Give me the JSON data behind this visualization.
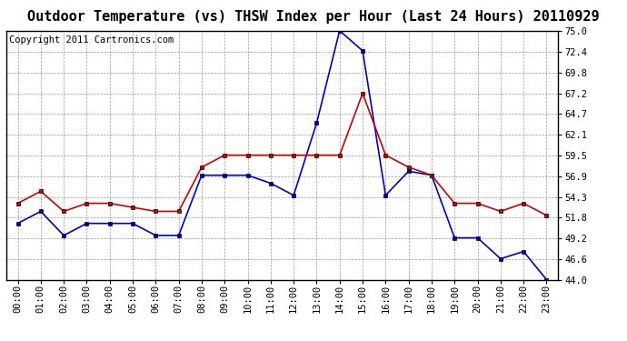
{
  "title": "Outdoor Temperature (vs) THSW Index per Hour (Last 24 Hours) 20110929",
  "copyright": "Copyright 2011 Cartronics.com",
  "hours": [
    "00:00",
    "01:00",
    "02:00",
    "03:00",
    "04:00",
    "05:00",
    "06:00",
    "07:00",
    "08:00",
    "09:00",
    "10:00",
    "11:00",
    "12:00",
    "13:00",
    "14:00",
    "15:00",
    "16:00",
    "17:00",
    "18:00",
    "19:00",
    "20:00",
    "21:00",
    "22:00",
    "23:00"
  ],
  "temp_red": [
    53.5,
    55.0,
    52.5,
    53.5,
    53.5,
    53.0,
    52.5,
    52.5,
    58.0,
    59.5,
    59.5,
    59.5,
    59.5,
    59.5,
    59.5,
    67.2,
    59.5,
    58.0,
    57.0,
    53.5,
    53.5,
    52.5,
    53.5,
    52.0
  ],
  "thsw_blue": [
    51.0,
    52.5,
    49.5,
    51.0,
    51.0,
    51.0,
    49.5,
    49.5,
    57.0,
    57.0,
    57.0,
    56.0,
    54.5,
    63.5,
    75.0,
    72.5,
    54.5,
    57.5,
    57.0,
    49.2,
    49.2,
    46.6,
    47.5,
    44.0
  ],
  "blue_color": "#0000cc",
  "red_color": "#cc0000",
  "bg_color": "#ffffff",
  "grid_color": "#999999",
  "ylim_min": 44.0,
  "ylim_max": 75.0,
  "yticks": [
    44.0,
    46.6,
    49.2,
    51.8,
    54.3,
    56.9,
    59.5,
    62.1,
    64.7,
    67.2,
    69.8,
    72.4,
    75.0
  ],
  "title_fontsize": 11,
  "copyright_fontsize": 7.5,
  "tick_fontsize": 7.5
}
